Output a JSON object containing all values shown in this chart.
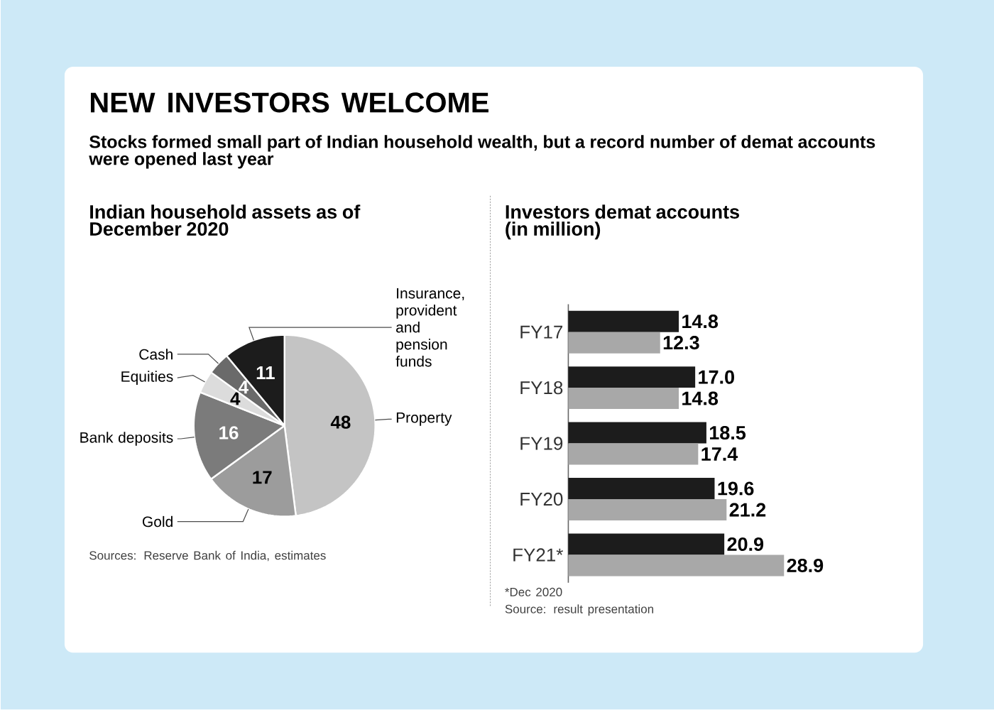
{
  "chart_data": [
    {
      "type": "other",
      "title": "NEW INVESTORS WELCOME",
      "subtitle": "Stocks formed small part of Indian household wealth, but a record number of demat accounts were opened last year"
    },
    {
      "type": "pie",
      "title": "Indian household assets as of December 2020",
      "categories": [
        "Property",
        "Gold",
        "Bank deposits",
        "Equities",
        "Cash",
        "Insurance, provident and pension funds"
      ],
      "values": [
        48,
        17,
        16,
        4,
        4,
        11
      ],
      "colors": [
        "#c4c4c4",
        "#9c9c9c",
        "#7b7b7b",
        "#dcdcdc",
        "#6a6a6a",
        "#1c1c1c"
      ],
      "data_labels": true,
      "annotations": [
        "Sources: Reserve Bank of India, estimates"
      ]
    },
    {
      "type": "bar",
      "orientation": "horizontal",
      "title": "Investors demat accounts (in million)",
      "categories": [
        "FY17",
        "FY18",
        "FY19",
        "FY20",
        "FY21*"
      ],
      "tick_labels": "y",
      "series": [
        {
          "color": "#1c1c1c",
          "values": [
            14.8,
            17.0,
            18.5,
            19.6,
            20.9
          ],
          "value_labels": [
            "14.8",
            "17.0",
            "18.5",
            "19.6",
            "20.9"
          ]
        },
        {
          "color": "#a8a8a8",
          "values": [
            12.3,
            14.8,
            17.4,
            21.2,
            28.9
          ],
          "value_labels": [
            "12.3",
            "14.8",
            "17.4",
            "21.2",
            "28.9"
          ]
        }
      ],
      "annotations": [
        "*Dec 2020",
        "Source: result presentation"
      ]
    }
  ]
}
